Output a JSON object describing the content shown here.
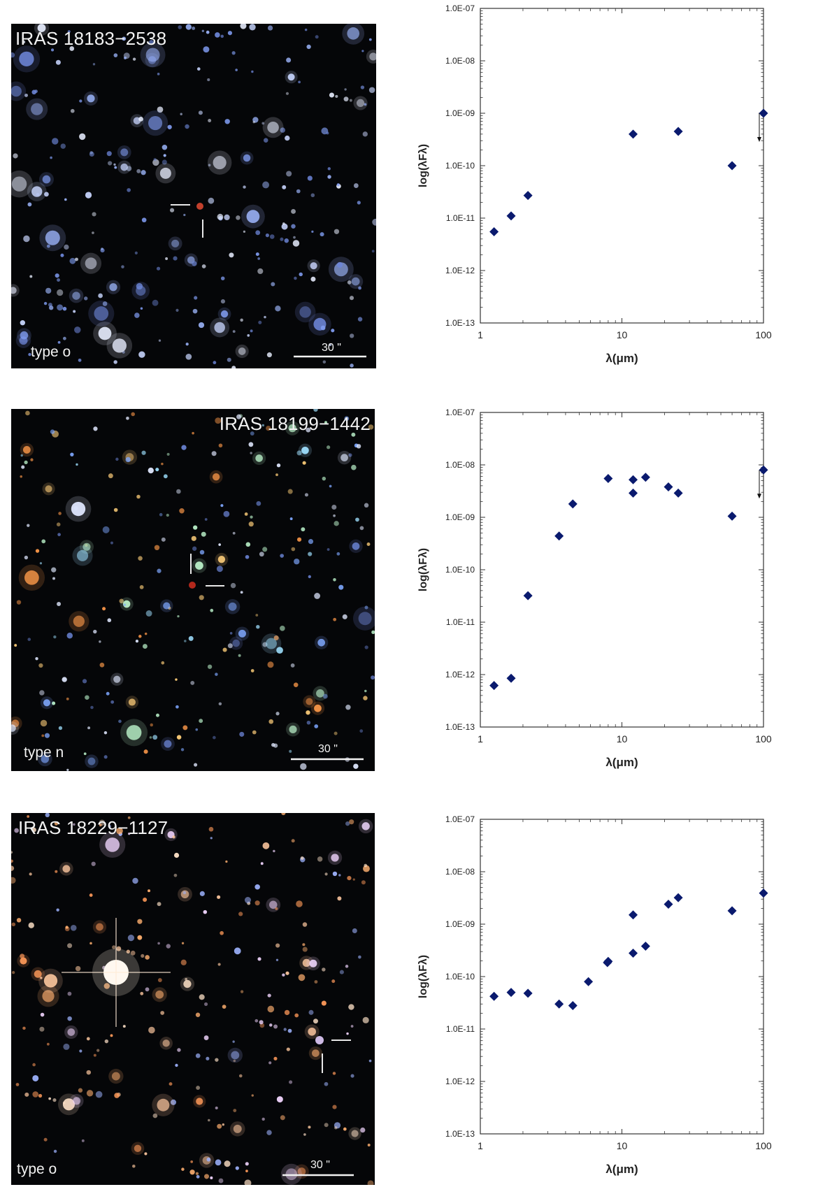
{
  "colors": {
    "marker": "#0a1a6e",
    "axis": "#333333",
    "panel_background": "#050608",
    "annotation": "#f2f2f2"
  },
  "panels": [
    {
      "image": {
        "title": "IRAS 18183−2538",
        "type_label": "type o",
        "scale_label": "30 \""
      },
      "chart_data": {
        "type": "scatter",
        "x_scale": "log",
        "y_scale": "log",
        "xlim": [
          1,
          100
        ],
        "ylim": [
          1e-13,
          1e-07
        ],
        "xlabel": "λ(μm)",
        "ylabel": "log(λFλ)",
        "x_ticks": [
          "1",
          "10",
          "100"
        ],
        "y_ticks": [
          "1.0E-13",
          "1.0E-12",
          "1.0E-11",
          "1.0E-10",
          "1.0E-09",
          "1.0E-08",
          "1.0E-07"
        ],
        "x": [
          1.25,
          1.65,
          2.17,
          12,
          25,
          60,
          100
        ],
        "y": [
          5.5e-12,
          1.1e-11,
          2.7e-11,
          4e-10,
          4.5e-10,
          1e-10,
          1e-09
        ],
        "upper_limits": [
          {
            "x": 100,
            "y": 1e-09
          }
        ]
      }
    },
    {
      "image": {
        "title": "IRAS 18199−1442",
        "type_label": "type n",
        "scale_label": "30 \""
      },
      "chart_data": {
        "type": "scatter",
        "x_scale": "log",
        "y_scale": "log",
        "xlim": [
          1,
          100
        ],
        "ylim": [
          1e-13,
          1e-07
        ],
        "xlabel": "λ(μm)",
        "ylabel": "log(λFλ)",
        "x_ticks": [
          "1",
          "10",
          "100"
        ],
        "y_ticks": [
          "1.0E-13",
          "1.0E-12",
          "1.0E-11",
          "1.0E-10",
          "1.0E-09",
          "1.0E-08",
          "1.0E-07"
        ],
        "x": [
          1.25,
          1.65,
          2.17,
          3.6,
          4.5,
          8.0,
          12,
          12,
          14.7,
          21.3,
          25,
          60,
          100
        ],
        "y": [
          6.2e-13,
          8.5e-13,
          3.2e-11,
          4.4e-10,
          1.8e-09,
          5.5e-09,
          5.2e-09,
          2.9e-09,
          5.8e-09,
          3.8e-09,
          2.9e-09,
          1.05e-09,
          8e-09
        ],
        "upper_limits": [
          {
            "x": 100,
            "y": 8e-09
          }
        ]
      }
    },
    {
      "image": {
        "title": "IRAS 18229−1127",
        "type_label": "type o",
        "scale_label": "30 \""
      },
      "chart_data": {
        "type": "scatter",
        "x_scale": "log",
        "y_scale": "log",
        "xlim": [
          1,
          100
        ],
        "ylim": [
          1e-13,
          1e-07
        ],
        "xlabel": "λ(μm)",
        "ylabel": "log(λFλ)",
        "x_ticks": [
          "1",
          "10",
          "100"
        ],
        "y_ticks": [
          "1.0E-13",
          "1.0E-12",
          "1.0E-11",
          "1.0E-10",
          "1.0E-09",
          "1.0E-08",
          "1.0E-07"
        ],
        "x": [
          1.25,
          1.65,
          2.17,
          3.6,
          4.5,
          5.8,
          7.9,
          8.0,
          12,
          12,
          14.7,
          21.3,
          25,
          60,
          100
        ],
        "y": [
          4.2e-11,
          5e-11,
          4.8e-11,
          3e-11,
          2.8e-11,
          8e-11,
          1.85e-10,
          1.95e-10,
          1.5e-09,
          2.8e-10,
          3.8e-10,
          2.4e-09,
          3.2e-09,
          1.8e-09,
          3.9e-09
        ],
        "upper_limits": []
      }
    }
  ]
}
